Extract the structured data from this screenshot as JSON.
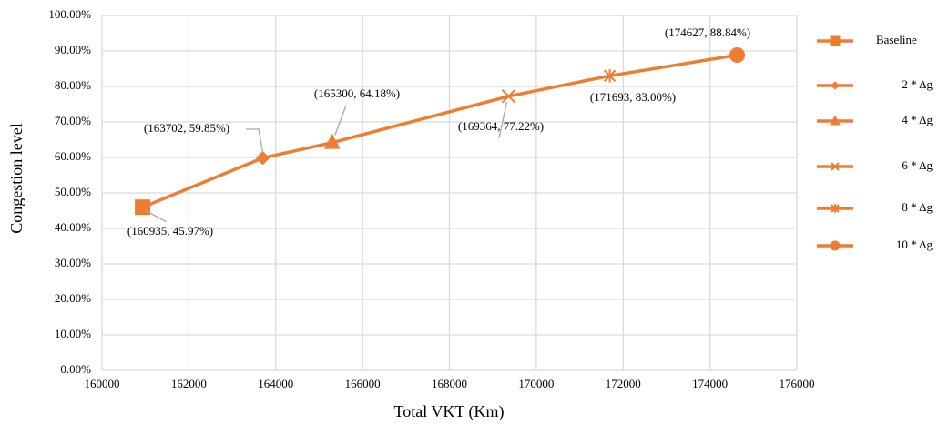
{
  "chart_data": {
    "type": "line",
    "x_label": "Total VKT (Km)",
    "y_label": "Congestion level",
    "xlim": [
      160000,
      176000
    ],
    "xticks": [
      160000,
      162000,
      164000,
      166000,
      168000,
      170000,
      172000,
      174000,
      176000
    ],
    "ylim": [
      0,
      100
    ],
    "yticks": [
      {
        "value": 0,
        "label": "0.00%"
      },
      {
        "value": 10,
        "label": "10.00%"
      },
      {
        "value": 20,
        "label": "20.00%"
      },
      {
        "value": 30,
        "label": "30.00%"
      },
      {
        "value": 40,
        "label": "40.00%"
      },
      {
        "value": 50,
        "label": "50.00%"
      },
      {
        "value": 60,
        "label": "60.00%"
      },
      {
        "value": 70,
        "label": "70.00%"
      },
      {
        "value": 80,
        "label": "80.00%"
      },
      {
        "value": 90,
        "label": "90.00%"
      },
      {
        "value": 100,
        "label": "100.00%"
      }
    ],
    "grid": true,
    "legend": "right",
    "color": "#ed7d31",
    "series": [
      {
        "name": "Baseline",
        "marker": "square",
        "x": [
          160935
        ],
        "values": [
          45.97
        ],
        "value_labels": [
          "(160935, 45.97%)"
        ]
      },
      {
        "name": "2 * Δg",
        "marker": "diamond",
        "x": [
          163702
        ],
        "values": [
          59.85
        ],
        "value_labels": [
          "(163702, 59.85%)"
        ]
      },
      {
        "name": "4 * Δg",
        "marker": "triangle",
        "x": [
          165300
        ],
        "values": [
          64.18
        ],
        "value_labels": [
          "(165300, 64.18%)"
        ]
      },
      {
        "name": "6 * Δg",
        "marker": "x",
        "x": [
          169364
        ],
        "values": [
          77.22
        ],
        "value_labels": [
          "(169364, 77.22%)"
        ]
      },
      {
        "name": "8 * Δg",
        "marker": "star",
        "x": [
          171693
        ],
        "values": [
          83.0
        ],
        "value_labels": [
          "(171693, 83.00%)"
        ]
      },
      {
        "name": "10 * Δg",
        "marker": "circle",
        "x": [
          174627
        ],
        "values": [
          88.84
        ],
        "value_labels": [
          "(174627, 88.84%)"
        ]
      }
    ]
  }
}
